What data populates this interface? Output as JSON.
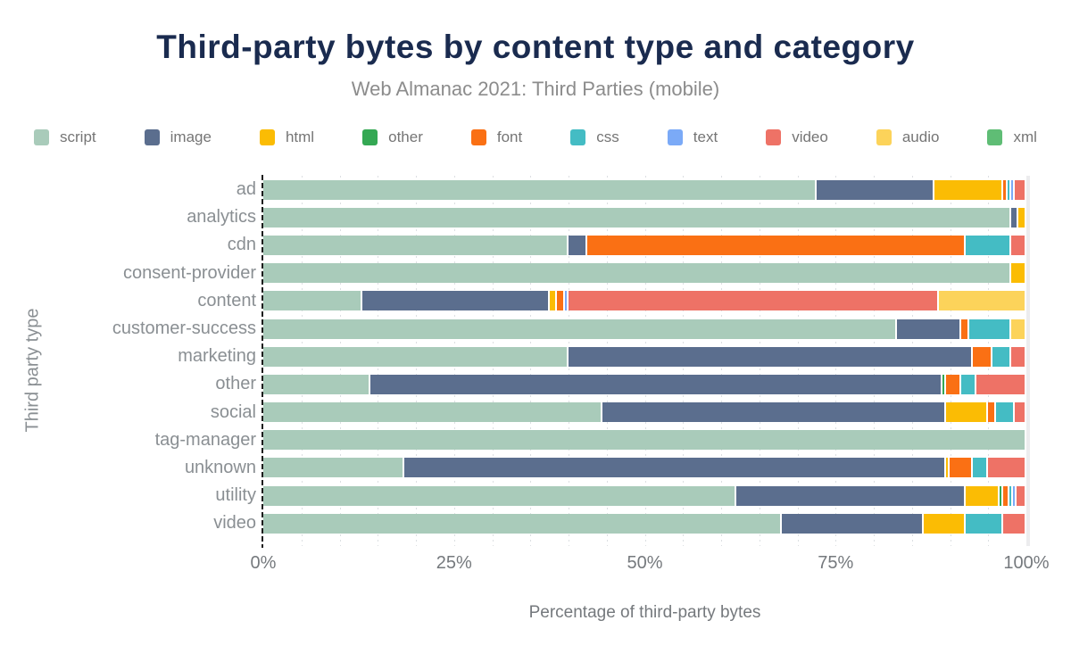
{
  "style": {
    "title_color": "#1a2b4f",
    "subtitle_color": "#8c8c8c",
    "axis_text_color": "#75797d",
    "category_label_color": "#8a8f93",
    "axis_line_color": "#1c1c1c",
    "grid_color": "#dcdfe2",
    "background": "#ffffff"
  },
  "chart_data": {
    "type": "bar",
    "variant": "horizontal-stacked",
    "title": "Third-party bytes by content type and category",
    "subtitle": "Web Almanac 2021: Third Parties (mobile)",
    "xlabel": "Percentage of third-party bytes",
    "ylabel": "Third party type",
    "xlim": [
      0,
      100
    ],
    "x_ticks": [
      {
        "label": "0%",
        "value": 0
      },
      {
        "label": "25%",
        "value": 25
      },
      {
        "label": "50%",
        "value": 50
      },
      {
        "label": "75%",
        "value": 75
      },
      {
        "label": "100%",
        "value": 100
      }
    ],
    "grid": "dotted vertical minor gridlines every 5%, solid light line at 100%",
    "legend_position": "top",
    "legend": [
      "script",
      "image",
      "html",
      "other",
      "font",
      "css",
      "text",
      "video",
      "audio",
      "xml"
    ],
    "categories": [
      "ad",
      "analytics",
      "cdn",
      "consent-provider",
      "content",
      "customer-success",
      "marketing",
      "other",
      "social",
      "tag-manager",
      "unknown",
      "utility",
      "video"
    ],
    "series": [
      {
        "name": "script",
        "color": "#a9cbba",
        "values": [
          72.5,
          98,
          40,
          98,
          13,
          83,
          40,
          14,
          44.5,
          100,
          18.5,
          62,
          68
        ]
      },
      {
        "name": "image",
        "color": "#5b6e8e",
        "values": [
          15.5,
          1,
          2.5,
          0,
          24.5,
          8.5,
          53,
          75,
          45,
          0,
          71,
          30,
          18.5
        ]
      },
      {
        "name": "html",
        "color": "#fbbc04",
        "values": [
          9,
          1,
          0,
          2,
          1,
          0,
          0,
          0,
          5.5,
          0,
          0.5,
          4.5,
          5.5
        ]
      },
      {
        "name": "other",
        "color": "#34a853",
        "values": [
          0,
          0,
          0,
          0,
          0,
          0,
          0,
          0.5,
          0,
          0,
          0,
          0.5,
          0
        ]
      },
      {
        "name": "font",
        "color": "#fa7014",
        "values": [
          0.5,
          0,
          49.5,
          0,
          1,
          1,
          2.5,
          2,
          1,
          0,
          3,
          0.75,
          0
        ]
      },
      {
        "name": "css",
        "color": "#44bcc4",
        "values": [
          0.5,
          0,
          6,
          0,
          0,
          5.5,
          2.5,
          2,
          2.5,
          0,
          2,
          0.5,
          5
        ]
      },
      {
        "name": "text",
        "color": "#7baaf7",
        "values": [
          0.5,
          0,
          0,
          0,
          0.5,
          0,
          0,
          0,
          0,
          0,
          0,
          0.5,
          0
        ]
      },
      {
        "name": "video",
        "color": "#ee7266",
        "values": [
          1.5,
          0,
          2,
          0,
          48.5,
          0,
          2,
          6.5,
          1.5,
          0,
          5,
          1.25,
          3
        ]
      },
      {
        "name": "audio",
        "color": "#fcd35a",
        "values": [
          0,
          0,
          0,
          0,
          11.5,
          2,
          0,
          0,
          0,
          0,
          0,
          0,
          0
        ]
      },
      {
        "name": "xml",
        "color": "#5fbd75",
        "values": [
          0,
          0,
          0,
          0,
          0,
          0,
          0,
          0,
          0,
          0,
          0,
          0,
          0
        ]
      }
    ]
  }
}
